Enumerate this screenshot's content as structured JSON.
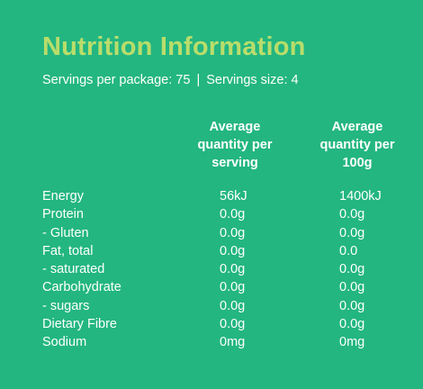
{
  "panel": {
    "title": "Nutrition Information",
    "servings_per_package": "Servings per package: 75",
    "separator": "|",
    "serving_size": "Servings size: 4"
  },
  "table": {
    "columns": [
      {
        "lines": [
          "Average",
          "quantity per",
          "serving"
        ]
      },
      {
        "lines": [
          "Average",
          "quantity per",
          "100g"
        ]
      }
    ],
    "rows": [
      {
        "label": "Energy",
        "per_serving": "56kJ",
        "per_100g": "1400kJ"
      },
      {
        "label": "Protein",
        "per_serving": "0.0g",
        "per_100g": "0.0g"
      },
      {
        "label": "- Gluten",
        "per_serving": "0.0g",
        "per_100g": "0.0g"
      },
      {
        "label": "Fat, total",
        "per_serving": "0.0g",
        "per_100g": "0.0"
      },
      {
        "label": "- saturated",
        "per_serving": "0.0g",
        "per_100g": "0.0g"
      },
      {
        "label": "Carbohydrate",
        "per_serving": "0.0g",
        "per_100g": "0.0g"
      },
      {
        "label": "- sugars",
        "per_serving": "0.0g",
        "per_100g": "0.0g"
      },
      {
        "label": "Dietary Fibre",
        "per_serving": "0.0g",
        "per_100g": "0.0g"
      },
      {
        "label": "Sodium",
        "per_serving": "0mg",
        "per_100g": "0mg"
      }
    ]
  },
  "colors": {
    "background": "#23b681",
    "title": "#b9dd6b",
    "text": "#ffffff"
  }
}
